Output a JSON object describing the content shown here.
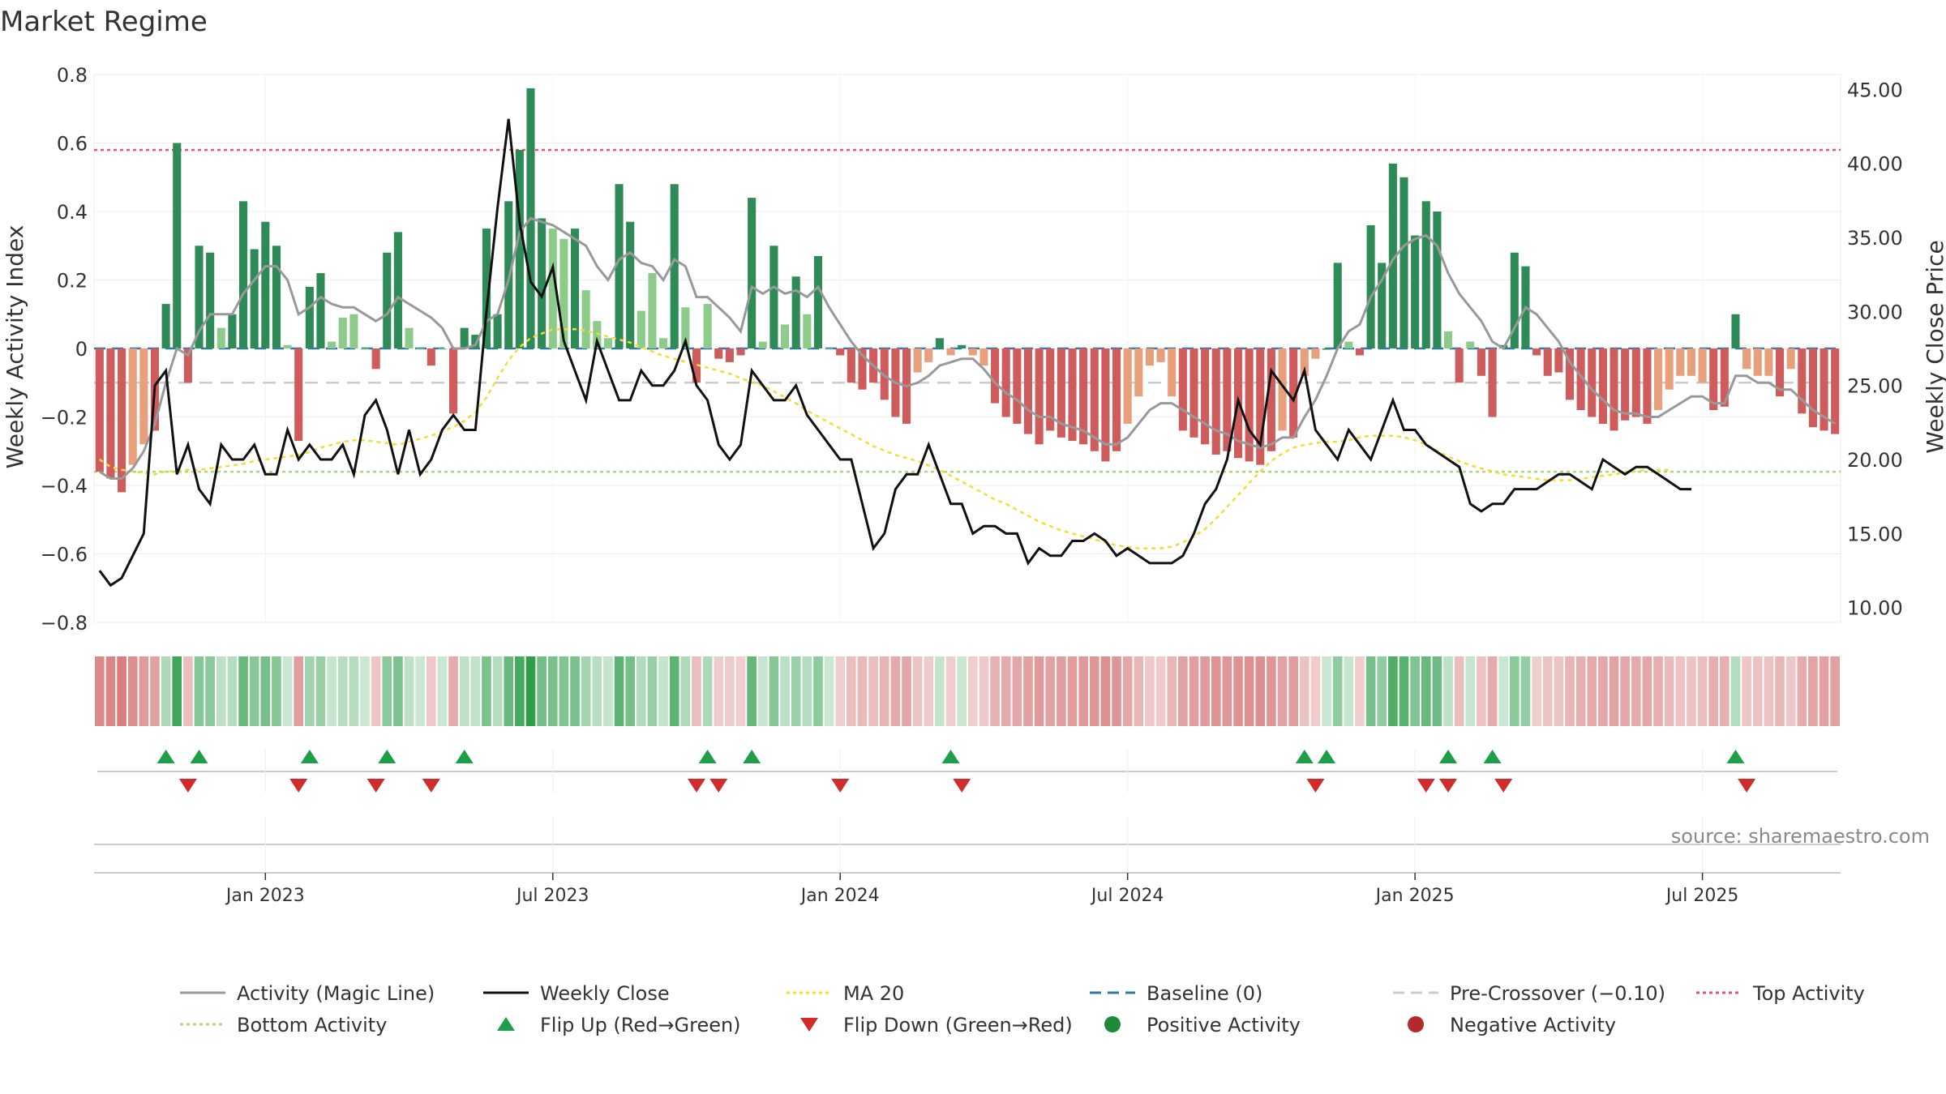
{
  "chart_data": {
    "type": "bar",
    "title": "Market Regime",
    "source": "source: sharemaestro.com",
    "left_axis": {
      "label": "Weekly Activity Index",
      "ylim": [
        -0.8,
        0.8
      ],
      "ticks": [
        "0.8",
        "0.6",
        "0.4",
        "0.2",
        "0",
        "−0.2",
        "−0.4",
        "−0.6",
        "−0.8"
      ]
    },
    "right_axis": {
      "label": "Weekly Close Price",
      "ylim": [
        9.0,
        46.0
      ],
      "ticks": [
        "45.00",
        "40.00",
        "35.00",
        "30.00",
        "25.00",
        "20.00",
        "15.00",
        "10.00"
      ]
    },
    "x_ticks": [
      {
        "label": "Jan 2023",
        "week": 15
      },
      {
        "label": "Jul 2023",
        "week": 41
      },
      {
        "label": "Jan 2024",
        "week": 67
      },
      {
        "label": "Jul 2024",
        "week": 93
      },
      {
        "label": "Jan 2025",
        "week": 119
      },
      {
        "label": "Jul 2025",
        "week": 145
      }
    ],
    "reference_lines": {
      "top_activity": 0.58,
      "bottom_activity": -0.36,
      "pre_crossover": -0.1,
      "baseline": 0
    },
    "activity": [
      -0.36,
      -0.38,
      -0.42,
      -0.34,
      -0.28,
      -0.24,
      0.13,
      0.6,
      -0.1,
      0.3,
      0.28,
      0.06,
      0.1,
      0.43,
      0.29,
      0.37,
      0.3,
      0.01,
      -0.27,
      0.18,
      0.22,
      0.02,
      0.09,
      0.1,
      0.0,
      -0.06,
      0.28,
      0.34,
      0.06,
      0.0,
      -0.05,
      0.0,
      -0.19,
      0.06,
      0.04,
      0.35,
      0.1,
      0.43,
      0.58,
      0.76,
      0.38,
      0.35,
      0.32,
      0.35,
      0.17,
      0.08,
      0.03,
      0.48,
      0.37,
      0.11,
      0.22,
      0.03,
      0.48,
      0.12,
      -0.1,
      0.13,
      -0.03,
      -0.04,
      -0.02,
      0.44,
      0.02,
      0.3,
      0.07,
      0.21,
      0.1,
      0.27,
      0.0,
      -0.02,
      -0.1,
      -0.12,
      -0.1,
      -0.15,
      -0.2,
      -0.22,
      -0.07,
      -0.04,
      0.03,
      -0.02,
      0.01,
      -0.02,
      -0.05,
      -0.16,
      -0.2,
      -0.22,
      -0.25,
      -0.28,
      -0.24,
      -0.26,
      -0.27,
      -0.28,
      -0.3,
      -0.33,
      -0.3,
      -0.22,
      -0.14,
      -0.05,
      -0.04,
      -0.14,
      -0.24,
      -0.26,
      -0.28,
      -0.31,
      -0.3,
      -0.32,
      -0.33,
      -0.34,
      -0.3,
      -0.24,
      -0.26,
      -0.08,
      -0.03,
      0.0,
      0.25,
      0.02,
      -0.02,
      0.36,
      0.25,
      0.54,
      0.5,
      0.33,
      0.43,
      0.4,
      0.05,
      -0.1,
      0.02,
      -0.08,
      -0.2,
      0.01,
      0.28,
      0.24,
      -0.02,
      -0.08,
      -0.07,
      -0.15,
      -0.18,
      -0.2,
      -0.22,
      -0.24,
      -0.21,
      -0.2,
      -0.22,
      -0.18,
      -0.12,
      -0.08,
      -0.08,
      -0.1,
      -0.18,
      -0.17,
      0.1,
      -0.06,
      -0.08,
      -0.08,
      -0.14,
      -0.06,
      -0.19,
      -0.23,
      -0.24,
      -0.25
    ],
    "magic_line": [
      -0.36,
      -0.38,
      -0.38,
      -0.35,
      -0.3,
      -0.22,
      -0.1,
      0.0,
      -0.02,
      0.05,
      0.1,
      0.1,
      0.1,
      0.16,
      0.2,
      0.24,
      0.24,
      0.2,
      0.1,
      0.12,
      0.15,
      0.13,
      0.12,
      0.12,
      0.1,
      0.08,
      0.1,
      0.15,
      0.13,
      0.11,
      0.09,
      0.06,
      0.0,
      0.0,
      0.01,
      0.08,
      0.1,
      0.2,
      0.34,
      0.38,
      0.37,
      0.36,
      0.34,
      0.32,
      0.3,
      0.24,
      0.2,
      0.26,
      0.28,
      0.25,
      0.24,
      0.2,
      0.26,
      0.24,
      0.15,
      0.15,
      0.12,
      0.09,
      0.05,
      0.18,
      0.16,
      0.18,
      0.16,
      0.17,
      0.15,
      0.18,
      0.12,
      0.07,
      0.02,
      -0.02,
      -0.05,
      -0.08,
      -0.1,
      -0.11,
      -0.1,
      -0.08,
      -0.05,
      -0.04,
      -0.03,
      -0.03,
      -0.06,
      -0.1,
      -0.13,
      -0.15,
      -0.18,
      -0.2,
      -0.2,
      -0.22,
      -0.23,
      -0.24,
      -0.26,
      -0.28,
      -0.28,
      -0.26,
      -0.22,
      -0.18,
      -0.16,
      -0.16,
      -0.18,
      -0.2,
      -0.22,
      -0.24,
      -0.25,
      -0.27,
      -0.28,
      -0.29,
      -0.28,
      -0.26,
      -0.26,
      -0.2,
      -0.15,
      -0.08,
      0.0,
      0.05,
      0.07,
      0.15,
      0.2,
      0.26,
      0.3,
      0.32,
      0.33,
      0.3,
      0.22,
      0.16,
      0.12,
      0.08,
      0.02,
      0.0,
      0.06,
      0.12,
      0.1,
      0.06,
      0.02,
      -0.04,
      -0.08,
      -0.12,
      -0.15,
      -0.18,
      -0.19,
      -0.19,
      -0.2,
      -0.2,
      -0.18,
      -0.16,
      -0.14,
      -0.14,
      -0.16,
      -0.16,
      -0.08,
      -0.08,
      -0.1,
      -0.1,
      -0.12,
      -0.12,
      -0.15,
      -0.18,
      -0.2,
      -0.22
    ],
    "weekly_close": [
      12.5,
      11.5,
      12,
      13.5,
      15,
      25,
      26,
      19,
      21,
      18,
      17,
      21,
      20,
      20,
      21,
      19,
      19,
      22,
      20,
      21,
      20,
      20,
      21,
      19,
      23,
      24,
      22,
      19,
      22,
      19,
      20,
      22,
      23,
      22,
      22,
      30,
      37,
      43,
      36,
      32,
      31,
      33,
      28,
      26,
      24,
      28,
      26,
      24,
      24,
      26,
      25,
      25,
      26,
      28,
      25,
      24,
      21,
      20,
      21,
      26,
      25,
      24,
      24,
      25,
      23,
      22,
      21,
      20,
      20,
      17,
      14,
      15,
      18,
      19,
      19,
      21,
      19,
      17,
      17,
      15,
      15.5,
      15.5,
      15,
      15,
      13,
      14,
      13.5,
      13.5,
      14.5,
      14.5,
      15,
      14.5,
      13.5,
      14,
      13.5,
      13,
      13,
      13,
      13.5,
      15,
      17,
      18,
      20,
      24,
      22,
      21,
      26,
      25,
      24,
      26,
      22,
      21,
      20,
      22,
      21,
      20,
      22,
      24,
      22,
      22,
      21,
      20.5,
      20,
      19.5,
      17,
      16.5,
      17,
      17,
      18,
      18,
      18,
      18.5,
      19,
      19,
      18.5,
      18,
      20,
      19.5,
      19,
      19.5,
      19.5,
      19,
      18.5,
      18,
      18
    ],
    "ma20": [
      20,
      19.5,
      19.3,
      19.2,
      19.1,
      19,
      19.2,
      19.2,
      19.3,
      19.3,
      19.4,
      19.5,
      19.6,
      19.7,
      19.9,
      20,
      20.1,
      20.2,
      20.3,
      20.5,
      20.8,
      21,
      21.2,
      21.3,
      21.3,
      21.2,
      21.1,
      21,
      21.2,
      21.4,
      21.6,
      21.9,
      22.2,
      22.6,
      23.2,
      24.2,
      25.5,
      26.7,
      27.6,
      28.2,
      28.5,
      28.8,
      28.8,
      28.8,
      28.7,
      28.5,
      28.3,
      28.1,
      27.9,
      27.6,
      27.3,
      27,
      26.8,
      26.6,
      26.4,
      26.2,
      26,
      25.8,
      25.5,
      25.2,
      25,
      24.6,
      24.2,
      23.8,
      23.3,
      22.9,
      22.5,
      22.1,
      21.7,
      21.3,
      20.9,
      20.6,
      20.3,
      20.1,
      19.9,
      19.6,
      19.3,
      18.9,
      18.5,
      18.1,
      17.7,
      17.3,
      17,
      16.6,
      16.2,
      15.8,
      15.5,
      15.2,
      15,
      14.8,
      14.6,
      14.4,
      14.2,
      14.1,
      14,
      14,
      14,
      14.1,
      14.4,
      14.8,
      15.3,
      16,
      16.8,
      17.6,
      18.4,
      19.2,
      19.9,
      20.4,
      20.8,
      21,
      21.1,
      21.2,
      21.2,
      21.3,
      21.5,
      21.6,
      21.6,
      21.6,
      21.5,
      21.3,
      21,
      20.6,
      20.2,
      19.9,
      19.6,
      19.4,
      19.2,
      19,
      18.9,
      18.8,
      18.7,
      18.6,
      18.6,
      18.6,
      18.7,
      18.8,
      18.9,
      19,
      19.1,
      19.2,
      19.3,
      19.3,
      19.3
    ],
    "flip_up_weeks": [
      6,
      9,
      19,
      26,
      33,
      55,
      59,
      77,
      109,
      111,
      122,
      126,
      148
    ],
    "flip_down_weeks": [
      8,
      18,
      25,
      30,
      54,
      56,
      67,
      78,
      110,
      120,
      122,
      127,
      149
    ],
    "legend": [
      {
        "label": "Activity (Magic Line)",
        "kind": "line",
        "color": "#999999",
        "dash": ""
      },
      {
        "label": "Weekly Close",
        "kind": "line",
        "color": "#111111",
        "dash": ""
      },
      {
        "label": "MA 20",
        "kind": "line",
        "color": "#f2dd33",
        "dash": "4,4"
      },
      {
        "label": "Baseline (0)",
        "kind": "line",
        "color": "#2f78a8",
        "dash": "14,8"
      },
      {
        "label": "Pre-Crossover (−0.10)",
        "kind": "line",
        "color": "#cccccc",
        "dash": "14,8"
      },
      {
        "label": "Top Activity",
        "kind": "line",
        "color": "#e0566e",
        "dash": "4,4"
      },
      {
        "label": "Bottom Activity",
        "kind": "line",
        "color": "#a9d983",
        "dash": "4,4"
      },
      {
        "label": "Flip Up (Red→Green)",
        "kind": "tri-up",
        "color": "#1f9e4a",
        "dash": ""
      },
      {
        "label": "Flip Down (Green→Red)",
        "kind": "tri-down",
        "color": "#d22b2b",
        "dash": ""
      },
      {
        "label": "Positive Activity",
        "kind": "dot",
        "color": "#1f8a3a",
        "dash": ""
      },
      {
        "label": "Negative Activity",
        "kind": "dot",
        "color": "#b22a2a",
        "dash": ""
      }
    ],
    "colors": {
      "bar_pos_strong": "#2e8b57",
      "bar_pos_light": "#8ccb8a",
      "bar_neg_strong": "#cf5c5c",
      "bar_neg_light": "#e8a07c",
      "magic_line": "#999999",
      "close_line": "#111111",
      "ma20": "#f2dd33",
      "baseline": "#2f78a8",
      "pre_crossover": "#cccccc",
      "top_activity": "#e0566e",
      "bottom_activity": "#a9d983",
      "flip_up": "#1f9e4a",
      "flip_down": "#d22b2b"
    }
  }
}
